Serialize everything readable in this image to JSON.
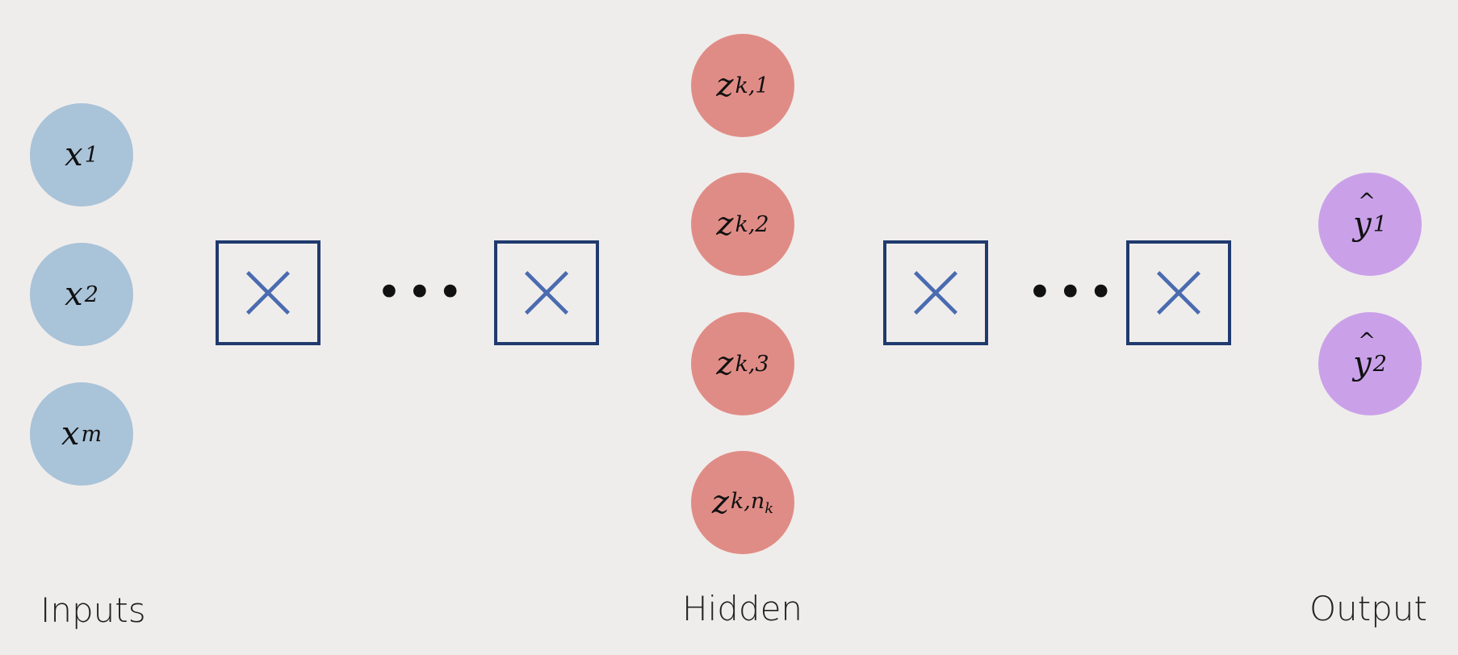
{
  "inputs": {
    "label": "Inputs",
    "nodes": [
      {
        "var": "x",
        "sub": "1"
      },
      {
        "var": "x",
        "sub": "2"
      },
      {
        "var": "x",
        "sub": "m"
      }
    ]
  },
  "hidden": {
    "label": "Hidden",
    "nodes": [
      {
        "var": "z",
        "sub": "k,1"
      },
      {
        "var": "z",
        "sub": "k,2"
      },
      {
        "var": "z",
        "sub": "k,3"
      },
      {
        "var": "z",
        "sub": "k,n",
        "subsub": "k"
      }
    ]
  },
  "output": {
    "label": "Output",
    "nodes": [
      {
        "var": "y",
        "sub": "1"
      },
      {
        "var": "y",
        "sub": "2"
      }
    ]
  },
  "ellipsis": "•••",
  "colors": {
    "input": "#a9c3d9",
    "hidden": "#e08c86",
    "output": "#caa1e9",
    "box": "#1f3a6e",
    "cross": "#4a6bb0"
  },
  "operators": [
    "multiply-box",
    "multiply-box",
    "multiply-box",
    "multiply-box"
  ]
}
